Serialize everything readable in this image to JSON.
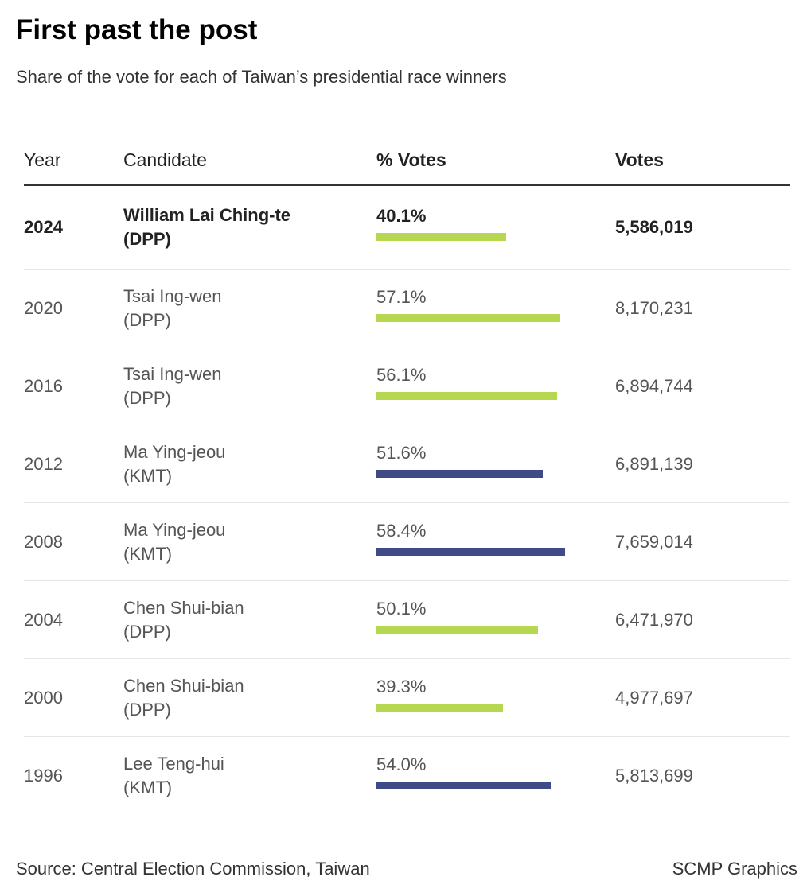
{
  "title": "First past the post",
  "subtitle": "Share of the vote for each of Taiwan’s presidential race winners",
  "colors": {
    "DPP": "#b6d750",
    "KMT": "#3f4a86"
  },
  "chart_data": {
    "type": "table",
    "headers": {
      "year": "Year",
      "candidate": "Candidate",
      "pct_votes": "% Votes",
      "votes": "Votes"
    },
    "bar_scale_max_pct": 74,
    "rows": [
      {
        "year": "2024",
        "name": "William Lai Ching-te",
        "party": "(DPP)",
        "party_key": "DPP",
        "pct": 40.1,
        "pct_label": "40.1%",
        "votes": "5,586,019",
        "highlight": true
      },
      {
        "year": "2020",
        "name": "Tsai Ing-wen",
        "party": "(DPP)",
        "party_key": "DPP",
        "pct": 57.1,
        "pct_label": "57.1%",
        "votes": "8,170,231",
        "highlight": false
      },
      {
        "year": "2016",
        "name": "Tsai Ing-wen",
        "party": "(DPP)",
        "party_key": "DPP",
        "pct": 56.1,
        "pct_label": "56.1%",
        "votes": "6,894,744",
        "highlight": false
      },
      {
        "year": "2012",
        "name": "Ma Ying-jeou",
        "party": "(KMT)",
        "party_key": "KMT",
        "pct": 51.6,
        "pct_label": "51.6%",
        "votes": "6,891,139",
        "highlight": false
      },
      {
        "year": "2008",
        "name": "Ma Ying-jeou",
        "party": "(KMT)",
        "party_key": "KMT",
        "pct": 58.4,
        "pct_label": "58.4%",
        "votes": "7,659,014",
        "highlight": false
      },
      {
        "year": "2004",
        "name": "Chen Shui-bian",
        "party": "(DPP)",
        "party_key": "DPP",
        "pct": 50.1,
        "pct_label": "50.1%",
        "votes": "6,471,970",
        "highlight": false
      },
      {
        "year": "2000",
        "name": "Chen Shui-bian",
        "party": "(DPP)",
        "party_key": "DPP",
        "pct": 39.3,
        "pct_label": "39.3%",
        "votes": "4,977,697",
        "highlight": false
      },
      {
        "year": "1996",
        "name": "Lee Teng-hui",
        "party": "(KMT)",
        "party_key": "KMT",
        "pct": 54.0,
        "pct_label": "54.0%",
        "votes": "5,813,699",
        "highlight": false
      }
    ]
  },
  "footer": {
    "source": "Source: Central Election Commission, Taiwan",
    "credit": "SCMP Graphics"
  }
}
